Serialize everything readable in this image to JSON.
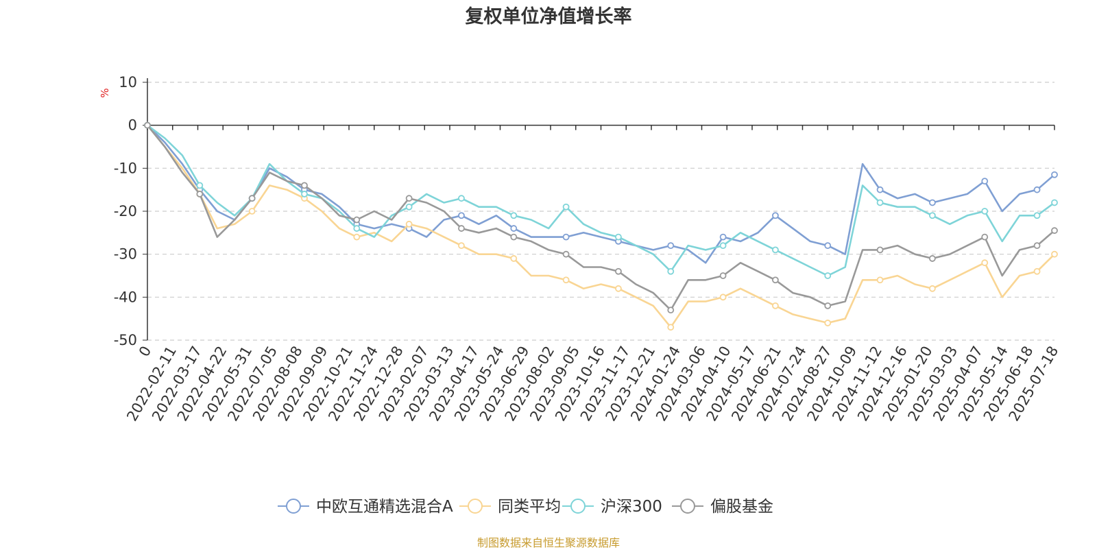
{
  "chart_data": {
    "type": "line",
    "title": "复权单位净值增长率",
    "ylabel": "%",
    "ylim": [
      -50,
      10
    ],
    "yticks": [
      "10",
      "0",
      "-10",
      "-20",
      "-30",
      "-40",
      "-50"
    ],
    "grid": true,
    "legend_position": "bottom",
    "source_note": "制图数据来自恒生聚源数据库",
    "x_tick_labels": [
      "0",
      "2022-02-11",
      "2022-03-17",
      "2022-04-22",
      "2022-05-31",
      "2022-07-05",
      "2022-08-08",
      "2022-09-09",
      "2022-10-21",
      "2022-11-24",
      "2022-12-28",
      "2023-02-07",
      "2023-03-13",
      "2023-04-17",
      "2023-05-24",
      "2023-06-29",
      "2023-08-02",
      "2023-09-05",
      "2023-10-16",
      "2023-11-17",
      "2023-12-21",
      "2024-01-24",
      "2024-03-06",
      "2024-04-10",
      "2024-05-17",
      "2024-06-21",
      "2024-07-24",
      "2024-08-27",
      "2024-10-09",
      "2024-11-12",
      "2024-12-16",
      "2025-01-20",
      "2025-03-03",
      "2025-04-07",
      "2025-05-14",
      "2025-06-18",
      "2025-07-18"
    ],
    "series": [
      {
        "name": "中欧互通精选混合A",
        "color": "#7f9fd3",
        "values": [
          0,
          -4,
          -9,
          -15,
          -20,
          -22,
          -17,
          -10,
          -12,
          -15,
          -16,
          -19,
          -23,
          -24,
          -23,
          -24,
          -26,
          -22,
          -21,
          -23,
          -21,
          -24,
          -26,
          -26,
          -26,
          -25,
          -26,
          -27,
          -28,
          -29,
          -28,
          -29,
          -32,
          -26,
          -27,
          -25,
          -21,
          -24,
          -27,
          -28,
          -30,
          -9,
          -15,
          -17,
          -16,
          -18,
          -17,
          -16,
          -13,
          -20,
          -16,
          -15,
          -11.5
        ]
      },
      {
        "name": "同类平均",
        "color": "#f9d593",
        "values": [
          0,
          -5,
          -10,
          -16,
          -24,
          -23,
          -20,
          -14,
          -15,
          -17,
          -20,
          -24,
          -26,
          -25,
          -27,
          -23,
          -24,
          -26,
          -28,
          -30,
          -30,
          -31,
          -35,
          -35,
          -36,
          -38,
          -37,
          -38,
          -40,
          -42,
          -47,
          -41,
          -41,
          -40,
          -38,
          -40,
          -42,
          -44,
          -45,
          -46,
          -45,
          -36,
          -36,
          -35,
          -37,
          -38,
          -36,
          -34,
          -32,
          -40,
          -35,
          -34,
          -30
        ]
      },
      {
        "name": "沪深300",
        "color": "#7ed4d8",
        "values": [
          0,
          -3,
          -7,
          -14,
          -18,
          -21,
          -17,
          -9,
          -13,
          -16,
          -17,
          -20,
          -24,
          -26,
          -21,
          -19,
          -16,
          -18,
          -17,
          -19,
          -19,
          -21,
          -22,
          -24,
          -19,
          -23,
          -25,
          -26,
          -28,
          -30,
          -34,
          -28,
          -29,
          -28,
          -25,
          -27,
          -29,
          -31,
          -33,
          -35,
          -33,
          -14,
          -18,
          -19,
          -19,
          -21,
          -23,
          -21,
          -20,
          -27,
          -21,
          -21,
          -18
        ]
      },
      {
        "name": "偏股基金",
        "color": "#999999",
        "values": [
          0,
          -5,
          -11,
          -16,
          -26,
          -22,
          -17,
          -11,
          -13,
          -14,
          -17,
          -21,
          -22,
          -20,
          -22,
          -17,
          -18,
          -20,
          -24,
          -25,
          -24,
          -26,
          -27,
          -29,
          -30,
          -33,
          -33,
          -34,
          -37,
          -39,
          -43,
          -36,
          -36,
          -35,
          -32,
          -34,
          -36,
          -39,
          -40,
          -42,
          -41,
          -29,
          -29,
          -28,
          -30,
          -31,
          -30,
          -28,
          -26,
          -35,
          -29,
          -28,
          -24.5
        ]
      }
    ]
  }
}
